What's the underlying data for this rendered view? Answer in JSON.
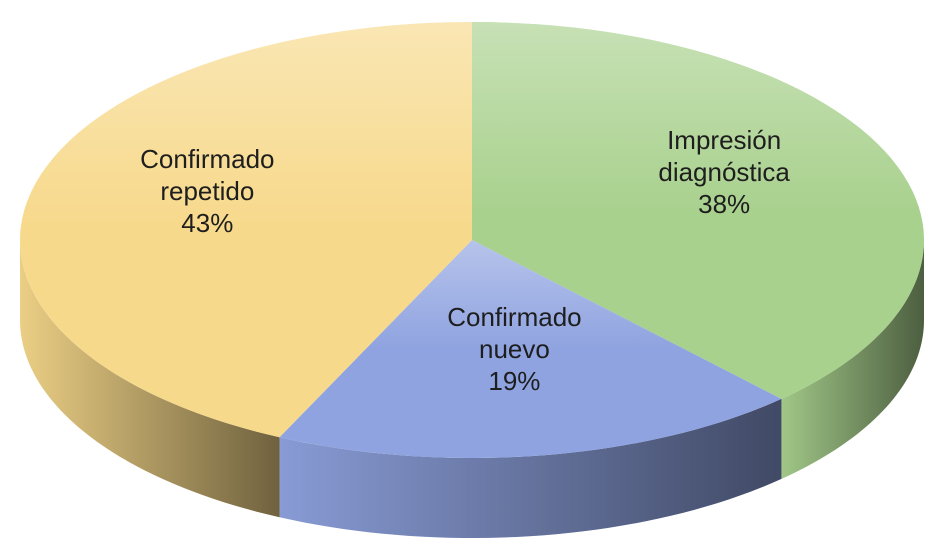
{
  "chart_data": {
    "type": "pie",
    "categories": [
      "Impresión diagnóstica",
      "Confirmado nuevo",
      "Confirmado repetido"
    ],
    "values": [
      38,
      19,
      43
    ],
    "value_labels": [
      "38%",
      "19%",
      "43%"
    ],
    "colors": [
      "#a9d18e",
      "#8fa3e0",
      "#f7d98b"
    ],
    "start_angle": 0,
    "direction": "clockwise",
    "3d": true
  }
}
